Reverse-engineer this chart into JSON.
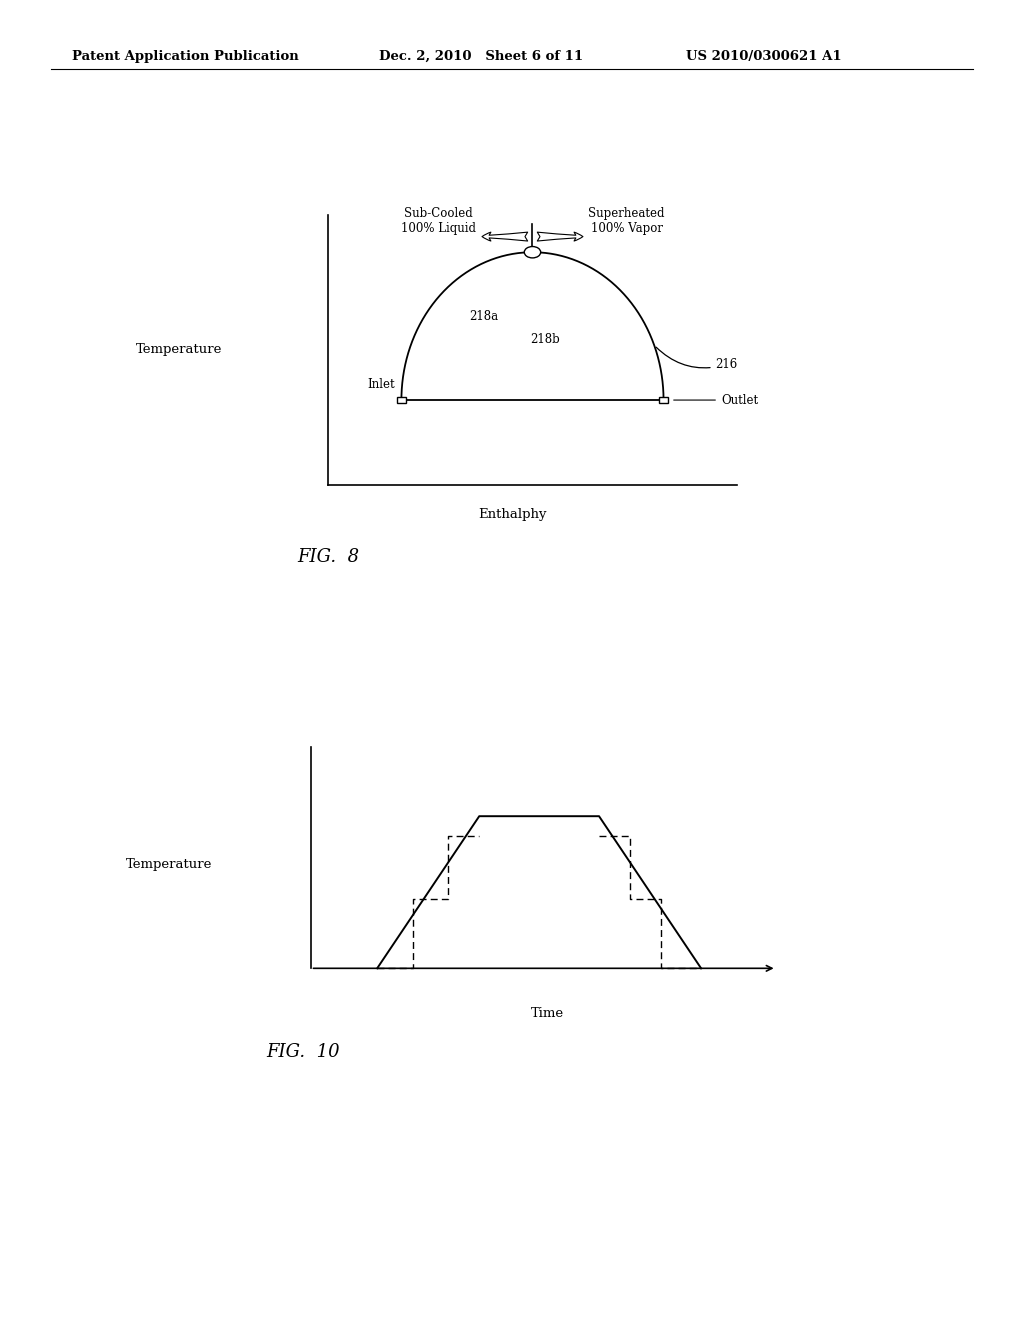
{
  "bg_color": "#ffffff",
  "header_left": "Patent Application Publication",
  "header_mid": "Dec. 2, 2010   Sheet 6 of 11",
  "header_right": "US 2010/0300621 A1",
  "fig8_label": "FIG.  8",
  "fig10_label": "FIG.  10",
  "fig8_ylabel": "Temperature",
  "fig8_xlabel": "Enthalphy",
  "fig10_ylabel": "Temperature",
  "fig10_xlabel": "Time",
  "label_216": "216",
  "label_218a": "218a",
  "label_218b": "218b",
  "label_inlet": "Inlet",
  "label_outlet": "Outlet",
  "label_subcooled": "Sub-Cooled\n100% Liquid",
  "label_superheated": "Superheated\n100% Vapor"
}
